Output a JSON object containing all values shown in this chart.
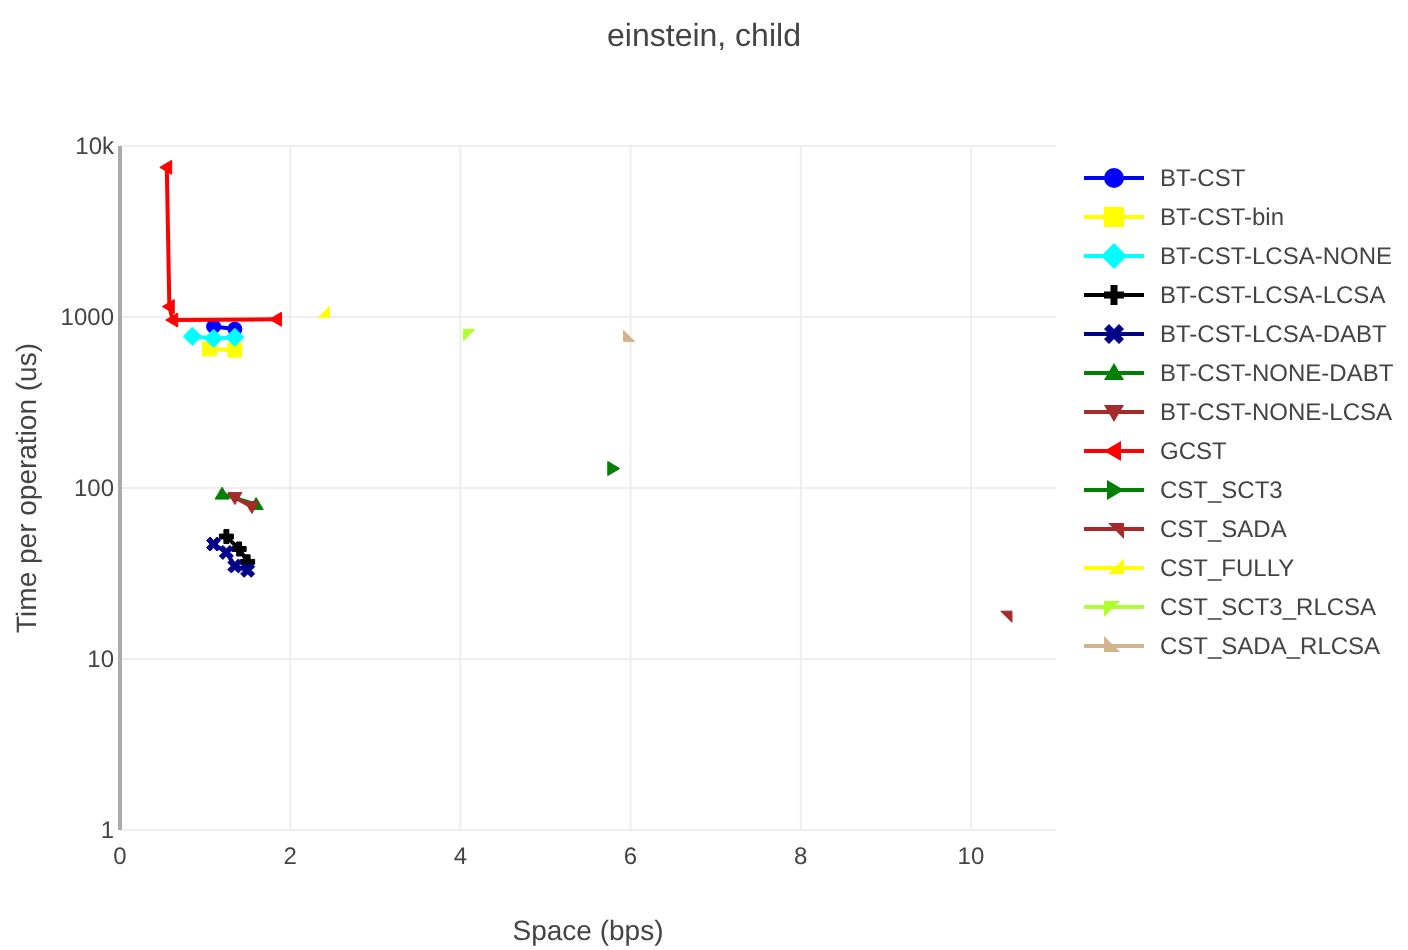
{
  "chart_data": {
    "type": "line",
    "title": "einstein, child",
    "xlabel": "Space (bps)",
    "ylabel": "Time per operation (us)",
    "log": "y",
    "grid": true,
    "legend": "right",
    "xlim": [
      0,
      11
    ],
    "xticks": [
      0,
      2,
      4,
      6,
      8,
      10
    ],
    "ylim": [
      1,
      10000
    ],
    "yticks": [
      1,
      10,
      100,
      1000,
      {
        "value": 10000,
        "label": "10k"
      }
    ],
    "series": [
      {
        "name": "BT-CST",
        "color": "#0000ff",
        "marker": "circle",
        "x": [
          1.1,
          1.35
        ],
        "values": [
          880,
          850
        ]
      },
      {
        "name": "BT-CST-bin",
        "color": "#ffff00",
        "marker": "square",
        "x": [
          1.05,
          1.35
        ],
        "values": [
          650,
          640
        ]
      },
      {
        "name": "BT-CST-LCSA-NONE",
        "color": "#00ffff",
        "marker": "diamond",
        "x": [
          0.85,
          1.1,
          1.35
        ],
        "values": [
          770,
          750,
          760
        ]
      },
      {
        "name": "BT-CST-LCSA-LCSA",
        "color": "#000000",
        "marker": "cross",
        "x": [
          1.25,
          1.4,
          1.5
        ],
        "values": [
          52,
          44,
          37
        ]
      },
      {
        "name": "BT-CST-LCSA-DABT",
        "color": "#00008b",
        "marker": "x",
        "x": [
          1.1,
          1.25,
          1.35,
          1.5
        ],
        "values": [
          47,
          42,
          35,
          33
        ]
      },
      {
        "name": "BT-CST-NONE-DABT",
        "color": "#008000",
        "marker": "triangle-up",
        "x": [
          1.2,
          1.6
        ],
        "values": [
          92,
          80
        ]
      },
      {
        "name": "BT-CST-NONE-LCSA",
        "color": "#a52a2a",
        "marker": "triangle-down",
        "x": [
          1.35,
          1.55
        ],
        "values": [
          88,
          78
        ]
      },
      {
        "name": "GCST",
        "color": "#ff0000",
        "marker": "triangle-left",
        "x": [
          0.55,
          0.58,
          0.62,
          1.84
        ],
        "values": [
          7500,
          1150,
          960,
          970
        ]
      },
      {
        "name": "CST_SCT3",
        "color": "#008000",
        "marker": "triangle-right",
        "x": [
          5.79
        ],
        "values": [
          130
        ]
      },
      {
        "name": "CST_SADA",
        "color": "#a52a2a",
        "marker": "triangle-se",
        "x": [
          10.4
        ],
        "values": [
          18
        ]
      },
      {
        "name": "CST_FULLY",
        "color": "#ffff00",
        "marker": "triangle-ne",
        "x": [
          2.38
        ],
        "values": [
          1050
        ]
      },
      {
        "name": "CST_SCT3_RLCSA",
        "color": "#adff2f",
        "marker": "triangle-sw",
        "x": [
          4.12
        ],
        "values": [
          800
        ]
      },
      {
        "name": "CST_SADA_RLCSA",
        "color": "#d2b48c",
        "marker": "triangle-nw",
        "x": [
          6.0
        ],
        "values": [
          760
        ]
      }
    ]
  }
}
